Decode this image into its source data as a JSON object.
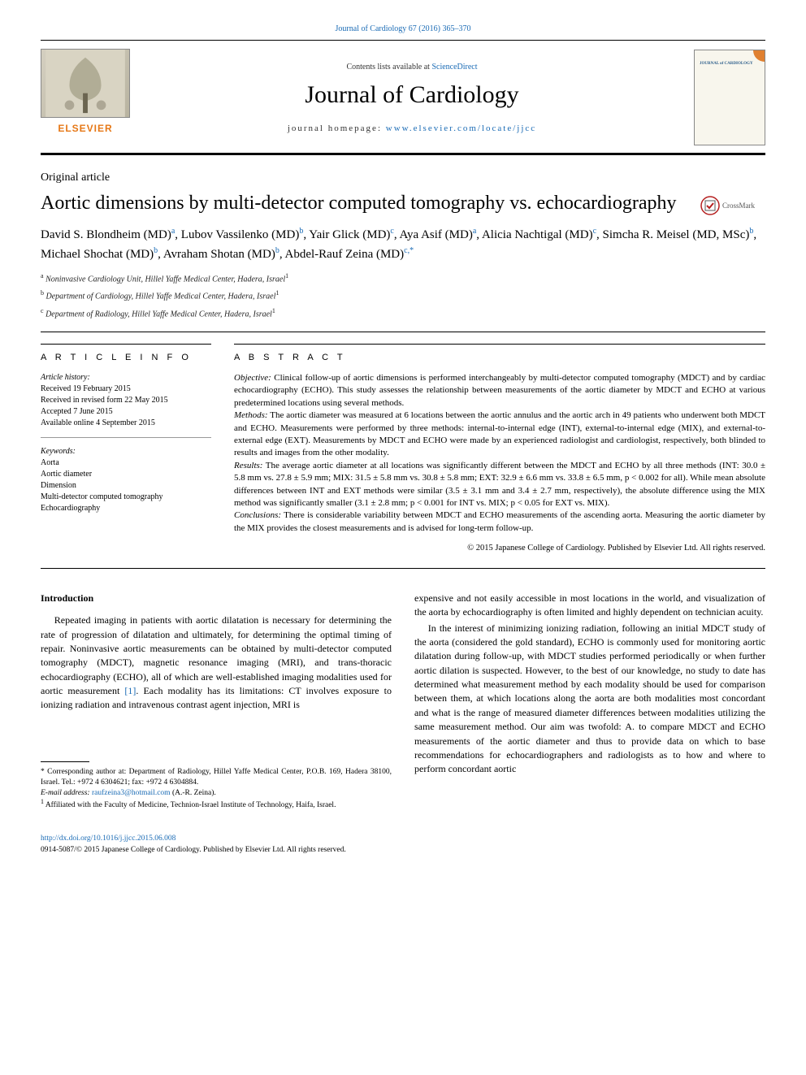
{
  "page": {
    "top_citation": "Journal of Cardiology 67 (2016) 365–370",
    "contents_prefix": "Contents lists available at ",
    "contents_link": "ScienceDirect",
    "journal_name": "Journal of Cardiology",
    "homepage_prefix": "journal homepage: ",
    "homepage_url": "www.elsevier.com/locate/jjcc",
    "publisher": "ELSEVIER",
    "cover_title": "JOURNAL of CARDIOLOGY"
  },
  "article": {
    "type": "Original article",
    "title": "Aortic dimensions by multi-detector computed tomography vs. echocardiography",
    "crossmark": "CrossMark",
    "authors_html": "David S. Blondheim (MD)<sup>a</sup>, Lubov Vassilenko (MD)<sup>b</sup>, Yair Glick (MD)<sup>c</sup>, Aya Asif (MD)<sup>a</sup>, Alicia Nachtigal (MD)<sup>c</sup>, Simcha R. Meisel (MD, MSc)<sup>b</sup>, Michael Shochat (MD)<sup>b</sup>, Avraham Shotan (MD)<sup>b</sup>, Abdel-Rauf Zeina (MD)<sup>c,*</sup>",
    "affiliations": [
      {
        "sup": "a",
        "text": "Noninvasive Cardiology Unit, Hillel Yaffe Medical Center, Hadera, Israel",
        "note": "1"
      },
      {
        "sup": "b",
        "text": "Department of Cardiology, Hillel Yaffe Medical Center, Hadera, Israel",
        "note": "1"
      },
      {
        "sup": "c",
        "text": "Department of Radiology, Hillel Yaffe Medical Center, Hadera, Israel",
        "note": "1"
      }
    ]
  },
  "info": {
    "heading": "A R T I C L E   I N F O",
    "history_label": "Article history:",
    "history": [
      "Received 19 February 2015",
      "Received in revised form 22 May 2015",
      "Accepted 7 June 2015",
      "Available online 4 September 2015"
    ],
    "keywords_label": "Keywords:",
    "keywords": [
      "Aorta",
      "Aortic diameter",
      "Dimension",
      "Multi-detector computed tomography",
      "Echocardiography"
    ]
  },
  "abstract": {
    "heading": "A B S T R A C T",
    "objective_label": "Objective:",
    "objective": "Clinical follow-up of aortic dimensions is performed interchangeably by multi-detector computed tomography (MDCT) and by cardiac echocardiography (ECHO). This study assesses the relationship between measurements of the aortic diameter by MDCT and ECHO at various predetermined locations using several methods.",
    "methods_label": "Methods:",
    "methods": "The aortic diameter was measured at 6 locations between the aortic annulus and the aortic arch in 49 patients who underwent both MDCT and ECHO. Measurements were performed by three methods: internal-to-internal edge (INT), external-to-internal edge (MIX), and external-to-external edge (EXT). Measurements by MDCT and ECHO were made by an experienced radiologist and cardiologist, respectively, both blinded to results and images from the other modality.",
    "results_label": "Results:",
    "results": "The average aortic diameter at all locations was significantly different between the MDCT and ECHO by all three methods (INT: 30.0 ± 5.8 mm vs. 27.8 ± 5.9 mm; MIX: 31.5 ± 5.8 mm vs. 30.8 ± 5.8 mm; EXT: 32.9 ± 6.6 mm vs. 33.8 ± 6.5 mm, p < 0.002 for all). While mean absolute differences between INT and EXT methods were similar (3.5 ± 3.1 mm and 3.4 ± 2.7 mm, respectively), the absolute difference using the MIX method was significantly smaller (3.1 ± 2.8 mm; p < 0.001 for INT vs. MIX; p < 0.05 for EXT vs. MIX).",
    "conclusions_label": "Conclusions:",
    "conclusions": "There is considerable variability between MDCT and ECHO measurements of the ascending aorta. Measuring the aortic diameter by the MIX provides the closest measurements and is advised for long-term follow-up.",
    "copyright": "© 2015 Japanese College of Cardiology. Published by Elsevier Ltd. All rights reserved."
  },
  "body": {
    "intro_heading": "Introduction",
    "para1": "Repeated imaging in patients with aortic dilatation is necessary for determining the rate of progression of dilatation and ultimately, for determining the optimal timing of repair. Noninvasive aortic measurements can be obtained by multi-detector computed tomography (MDCT), magnetic resonance imaging (MRI), and trans-thoracic echocardiography (ECHO), all of which are well-established imaging modalities used for aortic measurement ",
    "ref1": "[1]",
    "para1b": ". Each modality has its limitations: CT involves exposure to ionizing radiation and intravenous contrast agent injection, MRI is",
    "para2": "expensive and not easily accessible in most locations in the world, and visualization of the aorta by echocardiography is often limited and highly dependent on technician acuity.",
    "para3": "In the interest of minimizing ionizing radiation, following an initial MDCT study of the aorta (considered the gold standard), ECHO is commonly used for monitoring aortic dilatation during follow-up, with MDCT studies performed periodically or when further aortic dilation is suspected. However, to the best of our knowledge, no study to date has determined what measurement method by each modality should be used for comparison between them, at which locations along the aorta are both modalities most concordant and what is the range of measured diameter differences between modalities utilizing the same measurement method. Our aim was twofold: A. to compare MDCT and ECHO measurements of the aortic diameter and thus to provide data on which to base recommendations for echocardiographers and radiologists as to how and where to perform concordant aortic"
  },
  "footnotes": {
    "corresponding": "* Corresponding author at: Department of Radiology, Hillel Yaffe Medical Center, P.O.B. 169, Hadera 38100, Israel. Tel.: +972 4 6304621; fax: +972 4 6304884.",
    "email_label": "E-mail address:",
    "email": "raufzeina3@hotmail.com",
    "email_who": "(A.-R. Zeina).",
    "note1": "Affiliated with the Faculty of Medicine, Technion-Israel Institute of Technology, Haifa, Israel.",
    "note1_sup": "1"
  },
  "bottom": {
    "doi": "http://dx.doi.org/10.1016/j.jjcc.2015.06.008",
    "issn_line": "0914-5087/© 2015 Japanese College of Cardiology. Published by Elsevier Ltd. All rights reserved."
  },
  "colors": {
    "link": "#1a6bb5",
    "elsevier": "#e67817",
    "text": "#000000"
  }
}
